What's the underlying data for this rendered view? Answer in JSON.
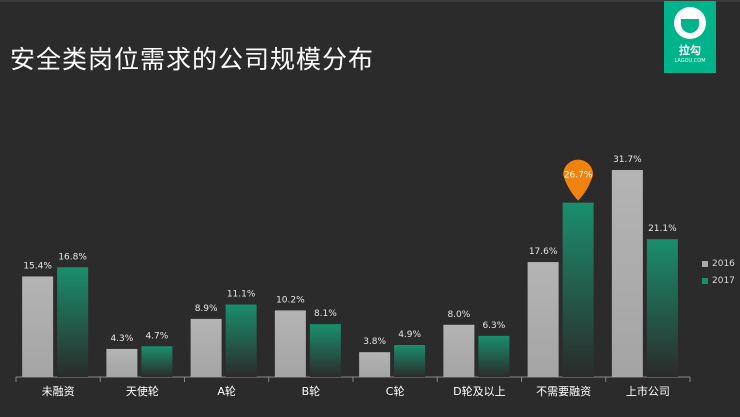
{
  "header": {
    "title": "安全类岗位需求的公司规模分布"
  },
  "logo": {
    "text": "拉勾",
    "sub": "LAGOU.COM",
    "color": "#00b38a"
  },
  "chart_data": {
    "type": "bar",
    "title": "安全类岗位需求的公司规模分布",
    "categories": [
      "未融资",
      "天使轮",
      "A轮",
      "B轮",
      "C轮",
      "D轮及以上",
      "不需要融资",
      "上市公司"
    ],
    "series": [
      {
        "name": "2016",
        "color": "#a9a9a9",
        "values": [
          15.4,
          4.3,
          8.9,
          10.2,
          3.8,
          8.0,
          17.6,
          31.7
        ],
        "labels": [
          "15.4%",
          "4.3%",
          "8.9%",
          "10.2%",
          "3.8%",
          "8.0%",
          "17.6%",
          "31.7%"
        ]
      },
      {
        "name": "2017",
        "color": "#1a8f6c",
        "values": [
          16.8,
          4.7,
          11.1,
          8.1,
          4.9,
          6.3,
          26.7,
          21.1
        ],
        "labels": [
          "16.8%",
          "4.7%",
          "11.1%",
          "8.1%",
          "4.9%",
          "6.3%",
          "26.7%",
          "21.1%"
        ]
      }
    ],
    "highlight": {
      "series": 1,
      "index": 6,
      "color": "#f0820f"
    },
    "xlabel": "",
    "ylabel": "",
    "ylim": [
      0,
      31.7
    ],
    "grid": false,
    "legend": "right"
  }
}
